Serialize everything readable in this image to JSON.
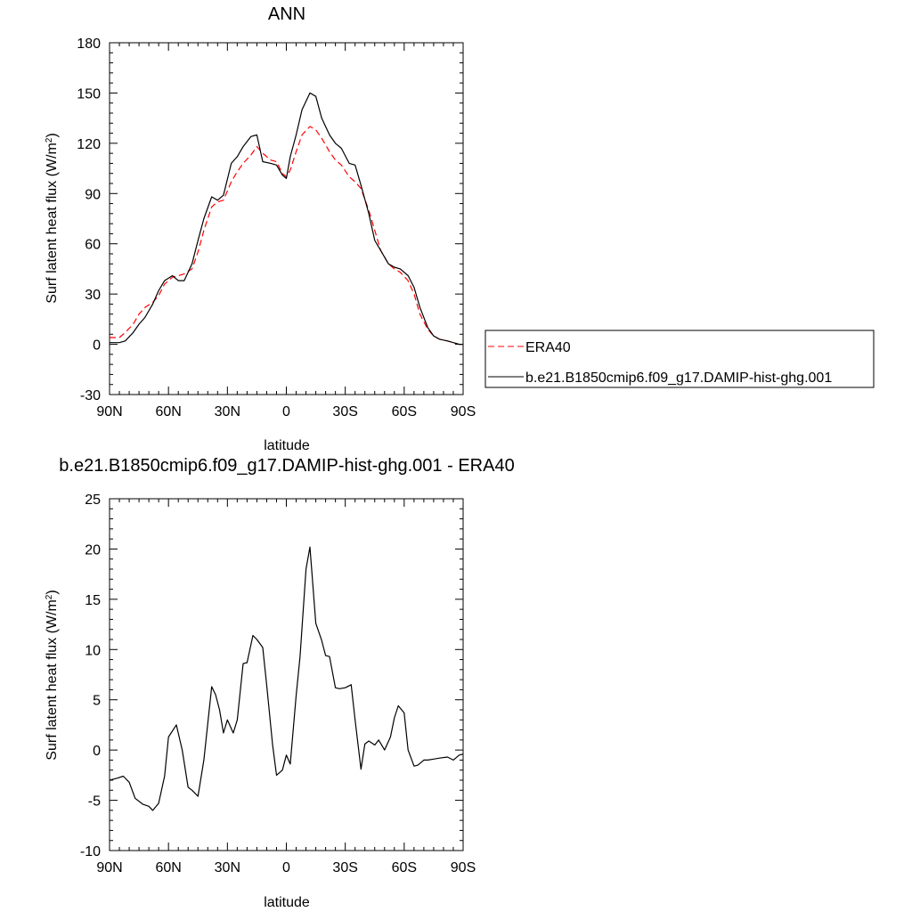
{
  "chart_data": [
    {
      "type": "line",
      "title": "ANN",
      "xlabel": "latitude",
      "ylabel": "Surf latent heat flux (W/m",
      "ylabel_sup": "2",
      "ylabel_close": ")",
      "xlim": [
        -90,
        90
      ],
      "ylim": [
        -30,
        180
      ],
      "x_ticks": [
        -90,
        -60,
        -30,
        0,
        30,
        60,
        90
      ],
      "x_tick_labels": [
        "90N",
        "60N",
        "30N",
        "0",
        "30S",
        "60S",
        "90S"
      ],
      "y_ticks": [
        -30,
        0,
        30,
        60,
        90,
        120,
        150,
        180
      ],
      "y_tick_labels": [
        "-30",
        "0",
        "30",
        "60",
        "90",
        "120",
        "150",
        "180"
      ],
      "grid": false,
      "legend_position": "right",
      "series": [
        {
          "name": "ERA40",
          "color": "#ff0000",
          "dash": "dashed",
          "x": [
            -90,
            -85,
            -82,
            -78,
            -75,
            -72,
            -68,
            -65,
            -62,
            -58,
            -55,
            -52,
            -48,
            -45,
            -42,
            -38,
            -35,
            -32,
            -28,
            -25,
            -22,
            -18,
            -15,
            -12,
            -8,
            -5,
            -2,
            0,
            2,
            5,
            8,
            12,
            15,
            18,
            22,
            25,
            28,
            32,
            35,
            38,
            42,
            45,
            48,
            52,
            55,
            58,
            62,
            65,
            68,
            72,
            75,
            78,
            82,
            85,
            88,
            90
          ],
          "y": [
            4,
            4,
            7,
            12,
            18,
            22,
            25,
            29,
            36,
            40,
            41,
            42,
            45,
            55,
            68,
            82,
            85,
            86,
            97,
            103,
            108,
            113,
            118,
            114,
            110,
            109,
            102,
            100,
            104,
            115,
            125,
            130,
            128,
            123,
            115,
            110,
            107,
            100,
            97,
            93,
            80,
            68,
            56,
            48,
            45,
            43,
            38,
            30,
            18,
            9,
            5,
            3,
            2,
            1,
            0,
            0
          ]
        },
        {
          "name": "b.e21.B1850cmip6.f09_g17.DAMIP-hist-ghg.001",
          "color": "#000000",
          "dash": "solid",
          "x": [
            -90,
            -85,
            -82,
            -78,
            -75,
            -72,
            -68,
            -65,
            -62,
            -58,
            -55,
            -52,
            -48,
            -45,
            -42,
            -38,
            -35,
            -32,
            -28,
            -25,
            -22,
            -18,
            -15,
            -12,
            -8,
            -5,
            -2,
            0,
            2,
            5,
            8,
            12,
            15,
            18,
            22,
            25,
            28,
            32,
            35,
            38,
            42,
            45,
            48,
            52,
            55,
            58,
            62,
            65,
            68,
            72,
            75,
            78,
            82,
            85,
            88,
            90
          ],
          "y": [
            1,
            1,
            2,
            7,
            12,
            16,
            24,
            32,
            38,
            41,
            38,
            38,
            48,
            62,
            75,
            88,
            86,
            89,
            108,
            112,
            118,
            124,
            125,
            109,
            108,
            107,
            101,
            99,
            112,
            125,
            140,
            150,
            148,
            135,
            125,
            120,
            117,
            108,
            107,
            95,
            78,
            62,
            56,
            48,
            46,
            45,
            41,
            34,
            22,
            10,
            5,
            3,
            2,
            1,
            0,
            0
          ]
        }
      ]
    },
    {
      "type": "line",
      "title": "b.e21.B1850cmip6.f09_g17.DAMIP-hist-ghg.001 - ERA40",
      "xlabel": "latitude",
      "ylabel": "Surf latent heat flux (W/m",
      "ylabel_sup": "2",
      "ylabel_close": ")",
      "xlim": [
        -90,
        90
      ],
      "ylim": [
        -10,
        25
      ],
      "x_ticks": [
        -90,
        -60,
        -30,
        0,
        30,
        60,
        90
      ],
      "x_tick_labels": [
        "90N",
        "60N",
        "30N",
        "0",
        "30S",
        "60S",
        "90S"
      ],
      "y_ticks": [
        -10,
        -5,
        0,
        5,
        10,
        15,
        20,
        25
      ],
      "y_tick_labels": [
        "-10",
        "-5",
        "0",
        "5",
        "10",
        "15",
        "20",
        "25"
      ],
      "grid": false,
      "series": [
        {
          "color": "#000000",
          "dash": "solid",
          "x": [
            -90,
            -86,
            -83,
            -80,
            -77,
            -73,
            -70,
            -68,
            -65,
            -62,
            -60,
            -56,
            -53,
            -50,
            -48,
            -45,
            -42,
            -38,
            -36,
            -34,
            -32,
            -30,
            -27,
            -25,
            -22,
            -20,
            -17,
            -15,
            -12,
            -10,
            -7,
            -5,
            -2,
            0,
            2,
            5,
            7,
            10,
            12,
            15,
            18,
            20,
            22,
            25,
            27,
            30,
            33,
            35,
            38,
            40,
            42,
            45,
            47,
            50,
            53,
            55,
            57,
            60,
            62,
            65,
            67,
            70,
            72,
            75,
            78,
            82,
            85,
            88,
            90
          ],
          "y": [
            -3,
            -2.8,
            -2.6,
            -3.2,
            -4.8,
            -5.4,
            -5.6,
            -6,
            -5.3,
            -2.6,
            1.3,
            2.5,
            0,
            -3.7,
            -4,
            -4.6,
            -1,
            6.3,
            5.5,
            4,
            1.7,
            3,
            1.7,
            3,
            8.6,
            8.7,
            11.4,
            11,
            10.2,
            6.5,
            0.5,
            -2.5,
            -2,
            -0.5,
            -1.4,
            5.4,
            9.3,
            18,
            20.2,
            12.6,
            10.9,
            9.4,
            9.3,
            6.2,
            6.1,
            6.2,
            6.5,
            3,
            -1.9,
            0.6,
            0.9,
            0.5,
            1,
            0,
            1.3,
            3.2,
            4.4,
            3.7,
            0,
            -1.6,
            -1.5,
            -1,
            -1,
            -0.9,
            -0.8,
            -0.7,
            -1,
            -0.5,
            -0.4
          ]
        }
      ]
    }
  ]
}
